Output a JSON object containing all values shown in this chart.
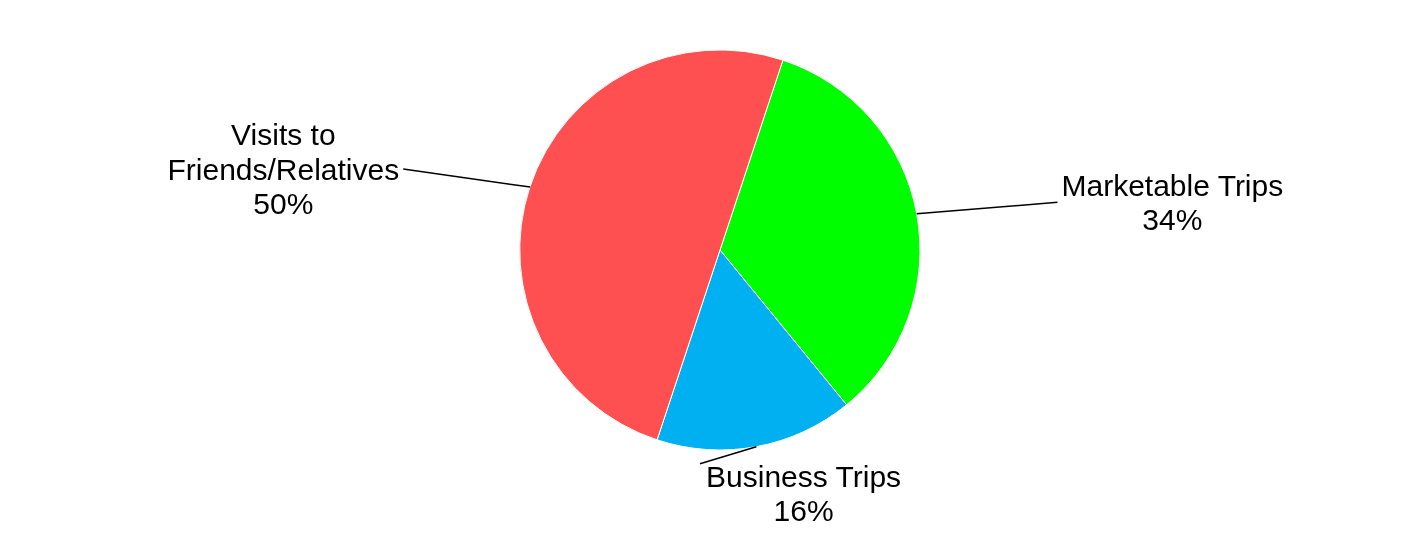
{
  "chart_data": {
    "type": "pie",
    "categories": [
      "Marketable Trips",
      "Business Trips",
      "Visits to Friends/Relatives"
    ],
    "values": [
      34,
      16,
      50
    ],
    "value_labels": [
      "34%",
      "16%",
      "50%"
    ],
    "colors": [
      "#00fe00",
      "#00b0f0",
      "#fe5050"
    ]
  }
}
